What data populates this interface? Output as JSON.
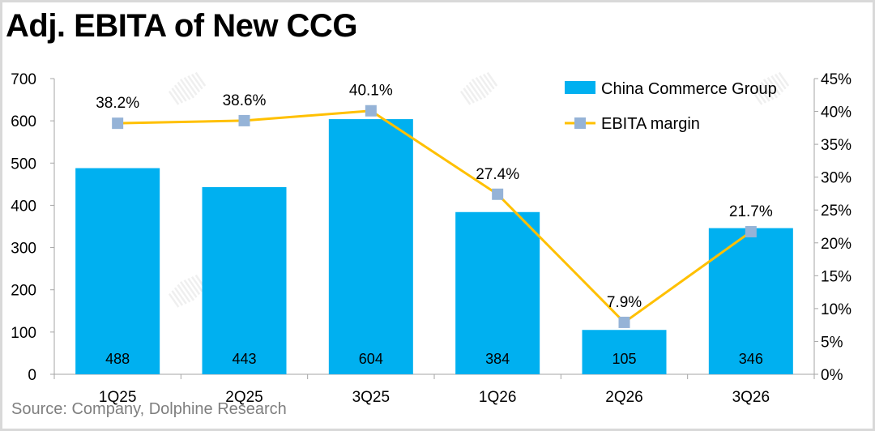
{
  "title": "Adj. EBITA of New CCG",
  "source": "Source:  Company, Dolphine Research",
  "chart_data": {
    "type": "bar+line",
    "title": "Adj. EBITA of New CCG",
    "categories": [
      "1Q25",
      "2Q25",
      "3Q25",
      "1Q26",
      "2Q26",
      "3Q26"
    ],
    "series": [
      {
        "name": "China Commerce Group",
        "type": "bar",
        "axis": "left",
        "values": [
          488,
          443,
          604,
          384,
          105,
          346
        ],
        "color": "#00b0f0"
      },
      {
        "name": "EBITA margin",
        "type": "line",
        "axis": "right",
        "values": [
          38.2,
          38.6,
          40.1,
          27.4,
          7.9,
          21.7
        ],
        "labels": [
          "38.2%",
          "38.6%",
          "40.1%",
          "27.4%",
          "7.9%",
          "21.7%"
        ],
        "color": "#ffc000",
        "marker_color": "#95b3d7"
      }
    ],
    "ylim": [
      0,
      700
    ],
    "yticks": [
      "0",
      "100",
      "200",
      "300",
      "400",
      "500",
      "600",
      "700"
    ],
    "y2lim": [
      0,
      45
    ],
    "y2ticks": [
      "0%",
      "5%",
      "10%",
      "15%",
      "20%",
      "25%",
      "30%",
      "35%",
      "40%",
      "45%"
    ],
    "grid": false,
    "legend": "top-right",
    "watermark": "DolphinResearch"
  }
}
